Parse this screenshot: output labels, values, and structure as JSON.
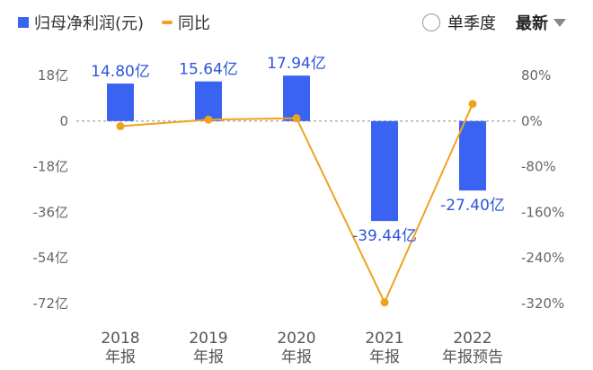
{
  "legend": {
    "bar_label": "归母净利润(元)",
    "line_label": "同比"
  },
  "controls": {
    "single_quarter": "单季度",
    "latest": "最新"
  },
  "colors": {
    "bar": "#3a63f2",
    "line": "#f0a21e",
    "label": "#2e55d9"
  },
  "chart_data": {
    "type": "bar",
    "categories": [
      [
        "2018",
        "年报"
      ],
      [
        "2019",
        "年报"
      ],
      [
        "2020",
        "年报"
      ],
      [
        "2021",
        "年报"
      ],
      [
        "2022",
        "年报预告"
      ]
    ],
    "series": [
      {
        "name": "归母净利润(元)",
        "type": "bar",
        "axis": "left",
        "values": [
          14.8,
          15.64,
          17.94,
          -39.44,
          -27.4
        ],
        "labels": [
          "14.80亿",
          "15.64亿",
          "17.94亿",
          "-39.44亿",
          "-27.40亿"
        ]
      },
      {
        "name": "同比",
        "type": "line",
        "axis": "right",
        "values": [
          -9,
          2.5,
          5,
          -318,
          30
        ]
      }
    ],
    "y_left": {
      "ticks": [
        18,
        0,
        -18,
        -36,
        -54,
        -72
      ],
      "labels": [
        "18亿",
        "0",
        "-18亿",
        "-36亿",
        "-54亿",
        "-72亿"
      ],
      "range": [
        -72,
        18
      ]
    },
    "y_right": {
      "ticks": [
        80,
        0,
        -80,
        -160,
        -240,
        -320
      ],
      "labels": [
        "80%",
        "0%",
        "-80%",
        "-160%",
        "-240%",
        "-320%"
      ],
      "range": [
        -320,
        80
      ]
    },
    "zero_line": "dashed"
  }
}
